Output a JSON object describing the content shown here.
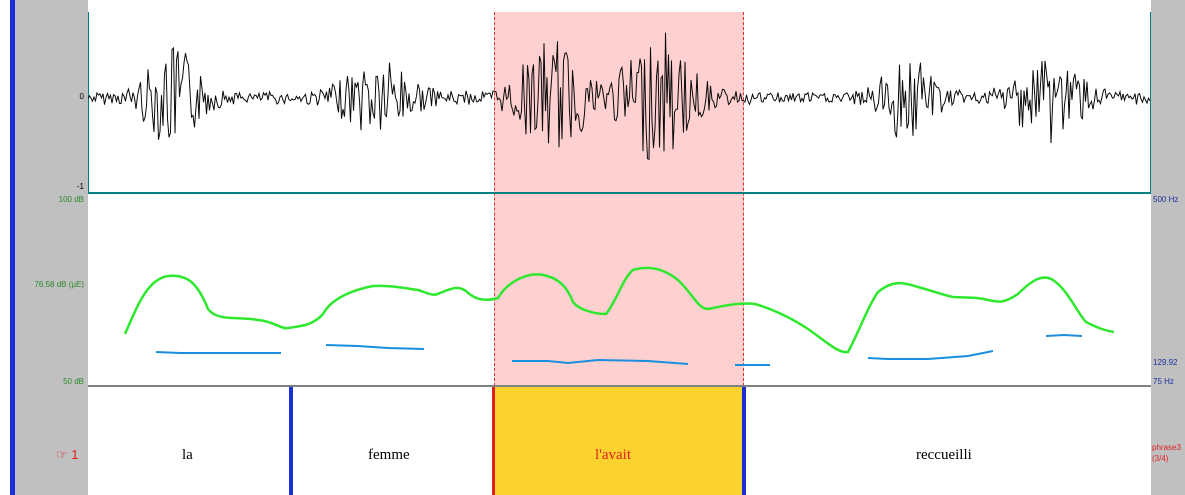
{
  "waveform": {
    "tick_top": "0",
    "tick_bottom": "-1"
  },
  "pitch_panel": {
    "left_top": "100 dB",
    "left_mid": "76.58 dB (µE)",
    "left_bottom": "50 dB",
    "right_top": "500 Hz",
    "right_mid": "129.92",
    "right_bottom": "75 Hz",
    "intensity_color": "#2ee82e",
    "pitch_color": "#1a8fe0"
  },
  "tier": {
    "number_marker": "☞ 1",
    "words": [
      "la",
      "femme",
      "l'avait",
      "reccueilli"
    ],
    "selected_word_index": 2,
    "selected_color": "#fcd22e",
    "phrase_label_line1": "phrase3",
    "phrase_label_line2": "(3/4)"
  },
  "selection": {
    "fill_color": "#ffd0d0",
    "edge_color": "#e03030"
  }
}
